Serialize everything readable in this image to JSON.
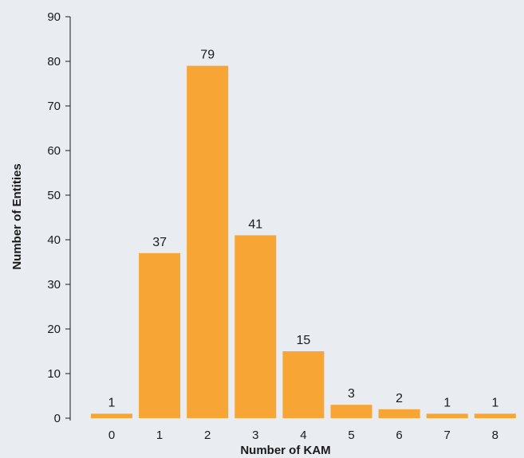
{
  "chart_data": {
    "type": "bar",
    "title": "",
    "xlabel": "Number of KAM",
    "ylabel": "Number of Entities",
    "categories": [
      "0",
      "1",
      "2",
      "3",
      "4",
      "5",
      "6",
      "7",
      "8"
    ],
    "values": [
      1,
      37,
      79,
      41,
      15,
      3,
      2,
      1,
      1
    ],
    "data_labels": [
      "1",
      "37",
      "79",
      "41",
      "15",
      "3",
      "2",
      "1",
      "1"
    ],
    "yticks": [
      0,
      10,
      20,
      30,
      40,
      50,
      60,
      70,
      80,
      90
    ],
    "ylim": [
      0,
      90
    ],
    "grid": false,
    "legend": "none",
    "colors": {
      "bar": "#f7a535",
      "background": "#e9edf2",
      "axis": "#1a1a1a"
    }
  }
}
